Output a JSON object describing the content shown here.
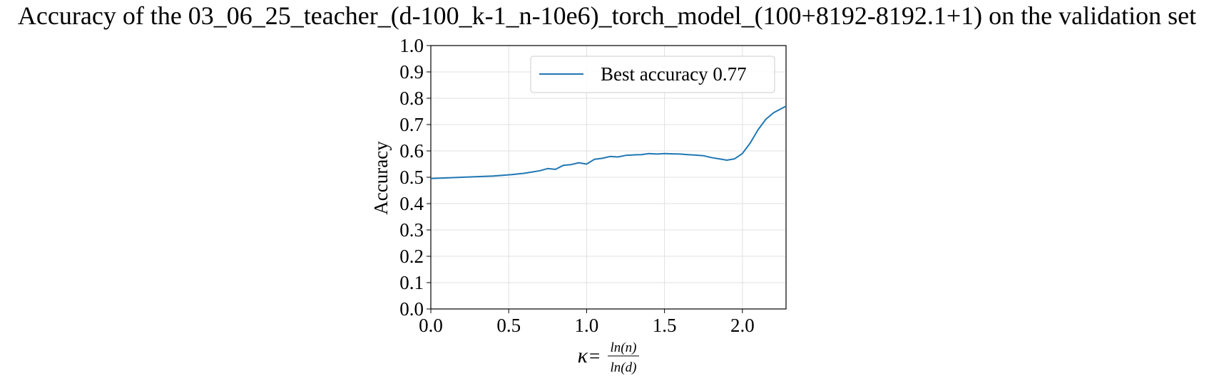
{
  "chart_data": {
    "type": "line",
    "title": "Accuracy of the 03_06_25_teacher_(d-100_k-1_n-10e6)_torch_model_(100+8192-8192.1+1) on the validation set",
    "xlabel": {
      "symbol": "κ",
      "equals": "=",
      "numerator": "ln(n)",
      "denominator": "ln(d)"
    },
    "ylabel": "Accuracy",
    "xlim": [
      0.0,
      2.28
    ],
    "ylim": [
      0.0,
      1.0
    ],
    "xticks": [
      "0.0",
      "0.5",
      "1.0",
      "1.5",
      "2.0"
    ],
    "xtick_values": [
      0.0,
      0.5,
      1.0,
      1.5,
      2.0
    ],
    "yticks": [
      "0.0",
      "0.1",
      "0.2",
      "0.3",
      "0.4",
      "0.5",
      "0.6",
      "0.7",
      "0.8",
      "0.9",
      "1.0"
    ],
    "ytick_values": [
      0.0,
      0.1,
      0.2,
      0.3,
      0.4,
      0.5,
      0.6,
      0.7,
      0.8,
      0.9,
      1.0
    ],
    "grid": true,
    "legend_position": "top-right",
    "series": [
      {
        "name": "Best accuracy 0.77",
        "color": "#1f77b4",
        "x": [
          0.0,
          0.2,
          0.4,
          0.52,
          0.6,
          0.65,
          0.7,
          0.75,
          0.8,
          0.85,
          0.9,
          0.95,
          1.0,
          1.05,
          1.1,
          1.15,
          1.2,
          1.25,
          1.3,
          1.35,
          1.4,
          1.45,
          1.5,
          1.55,
          1.6,
          1.65,
          1.7,
          1.75,
          1.8,
          1.85,
          1.9,
          1.95,
          2.0,
          2.05,
          2.1,
          2.15,
          2.2,
          2.28
        ],
        "y": [
          0.495,
          0.5,
          0.505,
          0.51,
          0.515,
          0.52,
          0.525,
          0.533,
          0.53,
          0.545,
          0.548,
          0.555,
          0.55,
          0.568,
          0.572,
          0.579,
          0.577,
          0.583,
          0.585,
          0.586,
          0.59,
          0.588,
          0.59,
          0.589,
          0.588,
          0.586,
          0.584,
          0.582,
          0.575,
          0.57,
          0.565,
          0.57,
          0.59,
          0.63,
          0.68,
          0.72,
          0.745,
          0.77
        ]
      }
    ]
  }
}
